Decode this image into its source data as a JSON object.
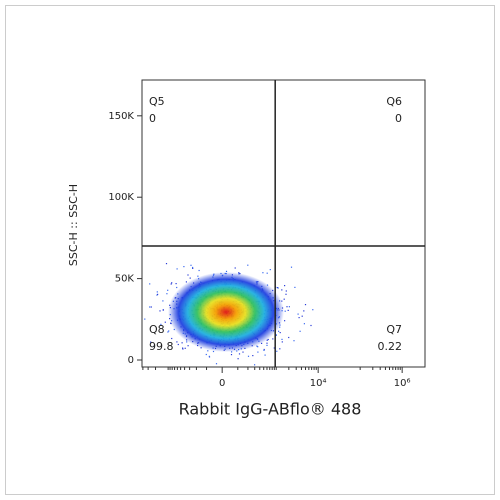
{
  "chart_data": {
    "type": "flow-density",
    "x_label": "Rabbit IgG-ABflo® 488",
    "y_label": "SSC-H :: SSC-H",
    "xscale": "biexponential",
    "xlim": [
      -4200,
      3500000
    ],
    "ylim": [
      -4300,
      172000
    ],
    "xticks": [
      0,
      {
        "value": 10000,
        "label": "10⁴"
      },
      {
        "value": 1000000,
        "label": "10⁶"
      }
    ],
    "yticks": [
      0,
      {
        "value": 50000,
        "label": "50K"
      },
      {
        "value": 100000,
        "label": "100K"
      },
      {
        "value": 150000,
        "label": "150K"
      }
    ],
    "quadrant_gate": {
      "x": 945,
      "y": 70000
    },
    "quadrants": [
      {
        "name": "Q5",
        "value": 0,
        "corner": "top-left"
      },
      {
        "name": "Q6",
        "value": 0,
        "corner": "top-right"
      },
      {
        "name": "Q7",
        "value": 0.22,
        "corner": "bottom-right"
      },
      {
        "name": "Q8",
        "value": 99.8,
        "corner": "bottom-left"
      }
    ]
  }
}
